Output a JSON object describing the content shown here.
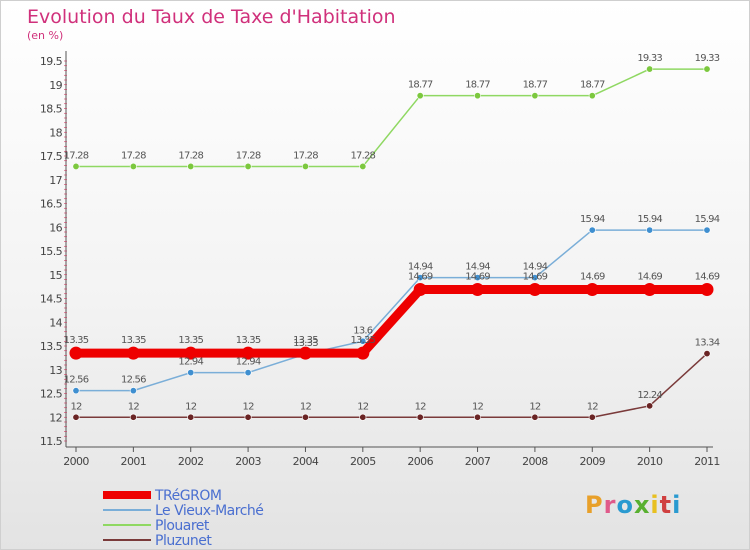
{
  "header": {
    "title": "Evolution du Taux de Taxe d'Habitation",
    "unit": "(en %)"
  },
  "logo": {
    "text": "Proxiti",
    "colors": [
      "#e8a02a",
      "#e05a8a",
      "#2a9ad0",
      "#58b030",
      "#e8c020",
      "#d04040",
      "#2a9ad0"
    ]
  },
  "chart_data": {
    "type": "line",
    "title": "Evolution du Taux de Taxe d'Habitation",
    "ylabel": "(en %)",
    "xlabel": "",
    "ylim": [
      11.5,
      19.5
    ],
    "yticks": [
      "11.5",
      "12",
      "12.5",
      "13",
      "13.5",
      "14",
      "14.5",
      "15",
      "15.5",
      "16",
      "16.5",
      "17",
      "17.5",
      "18",
      "18.5",
      "19",
      "19.5"
    ],
    "categories": [
      "2000",
      "2001",
      "2002",
      "2003",
      "2004",
      "2005",
      "2006",
      "2007",
      "2008",
      "2009",
      "2010",
      "2011"
    ],
    "series": [
      {
        "name": "Plouaret",
        "color": "#8fd862",
        "marker": "#7cc83e",
        "values": [
          17.28,
          17.28,
          17.28,
          17.28,
          17.28,
          17.28,
          18.77,
          18.77,
          18.77,
          18.77,
          19.33,
          19.33
        ],
        "labels": [
          "17.28",
          "17.28",
          "17.28",
          "17.28",
          "17.28",
          "17.28",
          "18.77",
          "18.77",
          "18.77",
          "18.77",
          "19.33",
          "19.33"
        ]
      },
      {
        "name": "Le Vieux-Marché",
        "color": "#7aaed8",
        "marker": "#3f8fd0",
        "values": [
          12.56,
          12.56,
          12.94,
          12.94,
          13.33,
          13.6,
          14.94,
          14.94,
          14.94,
          15.94,
          15.94,
          15.94
        ],
        "labels": [
          "12.56",
          "12.56",
          "12.94",
          "12.94",
          "13.33",
          "13.6",
          "14.94",
          "14.94",
          "14.94",
          "15.94",
          "15.94",
          "15.94"
        ]
      },
      {
        "name": "Pluzunet",
        "color": "#7a3a3a",
        "marker": "#6a2424",
        "values": [
          12,
          12,
          12,
          12,
          12,
          12,
          12,
          12,
          12,
          12,
          12.24,
          13.34
        ],
        "labels": [
          "12",
          "12",
          "12",
          "12",
          "12",
          "12",
          "12",
          "12",
          "12",
          "12",
          "12.24",
          "13.34"
        ]
      },
      {
        "name": "TRéGROM",
        "color": "#ee0000",
        "marker": "#ee0000",
        "values": [
          13.35,
          13.35,
          13.35,
          13.35,
          13.35,
          13.35,
          14.69,
          14.69,
          14.69,
          14.69,
          14.69,
          14.69
        ],
        "labels": [
          "13.35",
          "13.35",
          "13.35",
          "13.35",
          "13.35",
          "13.35",
          "14.69",
          "14.69",
          "14.69",
          "14.69",
          "14.69",
          "14.69"
        ]
      }
    ],
    "legend": {
      "position": "bottom-left",
      "order": [
        "TRéGROM",
        "Le Vieux-Marché",
        "Plouaret",
        "Pluzunet"
      ],
      "colors": [
        "#ee0000",
        "#7aaed8",
        "#8fd862",
        "#7a3a3a"
      ]
    }
  }
}
